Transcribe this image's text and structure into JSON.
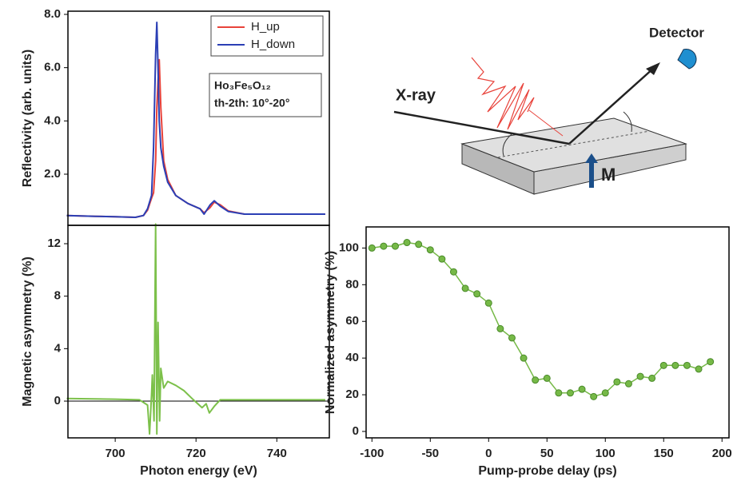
{
  "chart_data": [
    {
      "type": "line",
      "ylabel": "Reflectivity (arb. units)",
      "x": [
        688,
        695,
        700,
        705,
        707,
        708,
        709,
        709.5,
        710,
        710.3,
        710.6,
        710.9,
        711.3,
        712,
        713,
        715,
        718,
        721,
        722,
        723.5,
        724.5,
        726,
        728,
        732,
        740,
        752
      ],
      "series": [
        {
          "name": "H_up",
          "color": "#e8423a",
          "values": [
            0.45,
            0.42,
            0.4,
            0.38,
            0.45,
            0.65,
            1.1,
            1.3,
            2.5,
            4.5,
            5.5,
            6.3,
            4.5,
            2.5,
            1.8,
            1.2,
            0.9,
            0.7,
            0.55,
            0.75,
            0.95,
            0.85,
            0.62,
            0.5,
            0.5,
            0.5
          ]
        },
        {
          "name": "H_down",
          "color": "#2b3fb5",
          "values": [
            0.45,
            0.42,
            0.4,
            0.38,
            0.45,
            0.7,
            1.2,
            3.0,
            6.5,
            7.7,
            6.0,
            4.0,
            3.0,
            2.3,
            1.7,
            1.2,
            0.9,
            0.7,
            0.5,
            0.85,
            1.0,
            0.8,
            0.6,
            0.5,
            0.5,
            0.5
          ]
        }
      ],
      "xlim": [
        688.3,
        753
      ],
      "ylim": [
        0.08,
        8.12
      ],
      "yticks": [
        {
          "value": 2,
          "label": "2.0"
        },
        {
          "value": 4,
          "label": "4.0"
        },
        {
          "value": 6,
          "label": "6.0"
        },
        {
          "value": 8,
          "label": "8.0"
        }
      ],
      "legend": "upper right",
      "annotation": [
        "Ho₃Fe₅O₁₂",
        "th-2th: 10°-20°"
      ]
    },
    {
      "type": "line",
      "ylabel": "Magnetic asymmetry (%)",
      "xlabel": "Photon energy (eV)",
      "x": [
        688,
        700,
        706,
        708,
        708.5,
        709,
        709.2,
        709.6,
        710,
        710.3,
        710.6,
        711,
        711.3,
        712,
        713,
        715,
        717,
        719,
        721.5,
        722.5,
        723.3,
        724.5,
        726,
        740,
        752
      ],
      "series": [
        {
          "color": "#7cc04a",
          "values": [
            0.2,
            0.15,
            0.1,
            -0.3,
            -2.5,
            0.5,
            2.0,
            -1.5,
            13.5,
            -2.5,
            6.0,
            -1.5,
            2.5,
            1.0,
            1.5,
            1.2,
            0.8,
            0.2,
            -0.5,
            -0.2,
            -0.9,
            -0.4,
            0.1,
            0.1,
            0.1
          ]
        }
      ],
      "xlim": [
        688.3,
        753
      ],
      "ylim": [
        -2.8,
        13.4
      ],
      "xticks": [
        700,
        720,
        740
      ],
      "yticks": [
        0,
        4,
        8,
        12
      ],
      "zero_line": true
    },
    {
      "type": "line",
      "markers": true,
      "ylabel": "Normalized asymmetry (%)",
      "xlabel": "Pump-probe delay (ps)",
      "x": [
        -100,
        -90,
        -80,
        -70,
        -60,
        -50,
        -40,
        -30,
        -20,
        -10,
        0,
        10,
        20,
        30,
        40,
        50,
        60,
        70,
        80,
        90,
        100,
        110,
        120,
        130,
        140,
        150,
        160,
        170,
        180,
        190
      ],
      "series": [
        {
          "color": "#76b947",
          "values": [
            100,
            101,
            101,
            103,
            102,
            99,
            94,
            87,
            78,
            75,
            70,
            56,
            51,
            40,
            28,
            29,
            21,
            21,
            23,
            19,
            21,
            27,
            26,
            30,
            29,
            36,
            36,
            36,
            34,
            38
          ]
        }
      ],
      "xlim": [
        -105,
        206
      ],
      "ylim": [
        -3.5,
        111.5
      ],
      "xticks": [
        -100,
        -50,
        0,
        50,
        100,
        150,
        200
      ],
      "yticks": [
        0,
        20,
        40,
        60,
        80,
        100
      ]
    }
  ],
  "diagram": {
    "xray_label": "X-ray",
    "detector_label": "Detector",
    "magnetization_label": "M"
  }
}
